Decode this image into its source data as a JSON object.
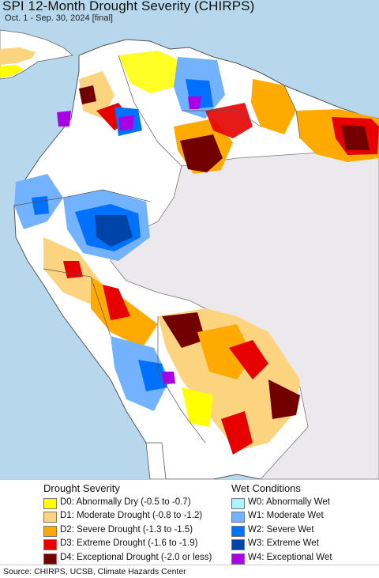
{
  "title": "SPI 12-Month Drought Severity (CHIRPS)",
  "subtitle": "Oct. 1 - Sep. 30, 2024 [final]",
  "colors": {
    "ocean": "#b7d8ec",
    "no_data": "#ece9ee",
    "normal": "#ffffff",
    "border": "#555555",
    "D0": "#ffff00",
    "D1": "#fcd37f",
    "D2": "#ffaa00",
    "D3": "#e60000",
    "D4": "#730000",
    "W0": "#aaf5ff",
    "W1": "#73b2ff",
    "W2": "#0070ff",
    "W3": "#0044a8",
    "W4": "#a900e6"
  },
  "legend": {
    "drought_heading": "Drought Severity",
    "wet_heading": "Wet Conditions",
    "drought": [
      {
        "code": "D0",
        "label": "D0: Abnormally Dry (-0.5 to -0.7)"
      },
      {
        "code": "D1",
        "label": "D1: Moderate Drought (-0.8 to -1.2)"
      },
      {
        "code": "D2",
        "label": "D2: Severe Drought (-1.3 to -1.5)"
      },
      {
        "code": "D3",
        "label": "D3: Extreme Drought (-1.6 to -1.9)"
      },
      {
        "code": "D4",
        "label": "D4: Exceptional Drought (-2.0 or less)"
      }
    ],
    "wet": [
      {
        "code": "W0",
        "label": "W0: Abnormally Wet"
      },
      {
        "code": "W1",
        "label": "W1: Moderate Wet"
      },
      {
        "code": "W2",
        "label": "W2: Severe Wet"
      },
      {
        "code": "W3",
        "label": "W3: Extreme Wet"
      },
      {
        "code": "W4",
        "label": "W4: Exceptional Wet"
      }
    ]
  },
  "source": "Source: CHIRPS, UCSB, Climate Hazards Center"
}
